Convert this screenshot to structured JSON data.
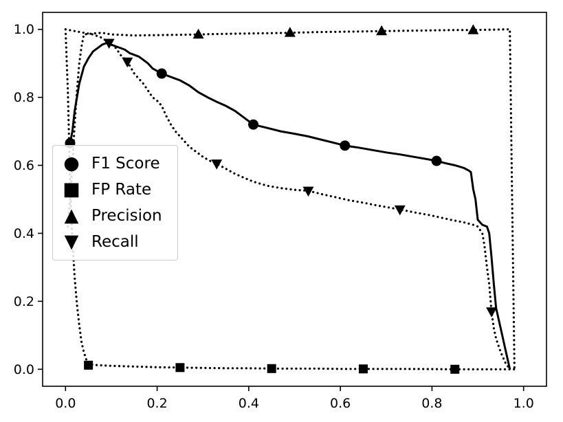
{
  "chart_data": {
    "type": "line",
    "title": "",
    "xlabel": "",
    "ylabel": "",
    "xlim": [
      -0.05,
      1.05
    ],
    "ylim": [
      -0.05,
      1.05
    ],
    "xticks": [
      "0.0",
      "0.2",
      "0.4",
      "0.6",
      "0.8",
      "1.0"
    ],
    "yticks": [
      "0.0",
      "0.2",
      "0.4",
      "0.6",
      "0.8",
      "1.0"
    ],
    "grid": false,
    "legend_position": "center left",
    "series": [
      {
        "name": "F1 Score",
        "line_style": "solid",
        "marker": "circle",
        "color": "#000000",
        "x": [
          0.005,
          0.01,
          0.015,
          0.02,
          0.03,
          0.04,
          0.05,
          0.06,
          0.07,
          0.08,
          0.09,
          0.1,
          0.11,
          0.12,
          0.13,
          0.14,
          0.15,
          0.16,
          0.17,
          0.18,
          0.19,
          0.21,
          0.23,
          0.25,
          0.27,
          0.29,
          0.31,
          0.33,
          0.35,
          0.37,
          0.39,
          0.41,
          0.44,
          0.47,
          0.5,
          0.53,
          0.56,
          0.59,
          0.61,
          0.64,
          0.67,
          0.7,
          0.73,
          0.76,
          0.79,
          0.81,
          0.83,
          0.85,
          0.87,
          0.88,
          0.885,
          0.89,
          0.895,
          0.9,
          0.91,
          0.92,
          0.925,
          0.93,
          0.935,
          0.94,
          0.95,
          0.96,
          0.965,
          0.97
        ],
        "y": [
          0.655,
          0.665,
          0.7,
          0.76,
          0.84,
          0.89,
          0.915,
          0.935,
          0.945,
          0.955,
          0.96,
          0.955,
          0.95,
          0.945,
          0.94,
          0.93,
          0.925,
          0.92,
          0.91,
          0.9,
          0.885,
          0.87,
          0.86,
          0.85,
          0.835,
          0.815,
          0.8,
          0.787,
          0.775,
          0.76,
          0.74,
          0.72,
          0.71,
          0.7,
          0.693,
          0.685,
          0.675,
          0.665,
          0.658,
          0.652,
          0.645,
          0.638,
          0.632,
          0.625,
          0.618,
          0.613,
          0.606,
          0.6,
          0.592,
          0.585,
          0.58,
          0.53,
          0.5,
          0.44,
          0.425,
          0.42,
          0.4,
          0.33,
          0.25,
          0.18,
          0.12,
          0.06,
          0.03,
          0.0
        ],
        "marker_points": {
          "x": [
            0.01,
            0.21,
            0.41,
            0.61,
            0.81
          ],
          "y": [
            0.665,
            0.87,
            0.72,
            0.658,
            0.613
          ]
        }
      },
      {
        "name": "FP Rate",
        "line_style": "dotted",
        "marker": "square",
        "color": "#000000",
        "x": [
          0.0,
          0.005,
          0.01,
          0.015,
          0.02,
          0.025,
          0.03,
          0.035,
          0.04,
          0.045,
          0.05,
          0.07,
          0.1,
          0.15,
          0.2,
          0.25,
          0.3,
          0.35,
          0.4,
          0.45,
          0.5,
          0.55,
          0.6,
          0.65,
          0.7,
          0.75,
          0.8,
          0.85,
          0.9,
          0.95,
          0.98
        ],
        "y": [
          1.0,
          0.82,
          0.55,
          0.38,
          0.27,
          0.19,
          0.13,
          0.08,
          0.05,
          0.03,
          0.015,
          0.012,
          0.01,
          0.008,
          0.006,
          0.005,
          0.004,
          0.003,
          0.003,
          0.002,
          0.002,
          0.002,
          0.001,
          0.001,
          0.001,
          0.001,
          0.0005,
          0.0,
          0.0,
          0.0,
          0.0
        ],
        "marker_points": {
          "x": [
            0.05,
            0.25,
            0.45,
            0.65,
            0.85
          ],
          "y": [
            0.012,
            0.005,
            0.002,
            0.001,
            0.0
          ]
        }
      },
      {
        "name": "Precision",
        "line_style": "dotted",
        "marker": "triangle-up",
        "color": "#000000",
        "x": [
          0.005,
          0.01,
          0.015,
          0.02,
          0.025,
          0.03,
          0.035,
          0.04,
          0.06,
          0.08,
          0.1,
          0.15,
          0.2,
          0.25,
          0.29,
          0.35,
          0.4,
          0.45,
          0.49,
          0.55,
          0.6,
          0.65,
          0.69,
          0.75,
          0.8,
          0.85,
          0.89,
          0.93,
          0.96,
          0.97,
          0.975,
          0.98
        ],
        "y": [
          0.42,
          0.5,
          0.6,
          0.72,
          0.82,
          0.9,
          0.95,
          0.985,
          0.988,
          0.99,
          0.985,
          0.982,
          0.983,
          0.984,
          0.985,
          0.987,
          0.988,
          0.989,
          0.99,
          0.992,
          0.993,
          0.994,
          0.995,
          0.996,
          0.997,
          0.998,
          0.998,
          0.999,
          1.0,
          1.0,
          0.5,
          0.0
        ],
        "marker_points": {
          "x": [
            0.29,
            0.49,
            0.69,
            0.89
          ],
          "y": [
            0.985,
            0.99,
            0.995,
            0.998
          ]
        }
      },
      {
        "name": "Recall",
        "line_style": "dotted",
        "marker": "triangle-down",
        "color": "#000000",
        "x": [
          0.0,
          0.02,
          0.04,
          0.06,
          0.08,
          0.095,
          0.11,
          0.12,
          0.135,
          0.15,
          0.16,
          0.17,
          0.18,
          0.19,
          0.2,
          0.21,
          0.22,
          0.23,
          0.24,
          0.25,
          0.26,
          0.27,
          0.28,
          0.29,
          0.3,
          0.31,
          0.32,
          0.33,
          0.35,
          0.37,
          0.39,
          0.41,
          0.44,
          0.47,
          0.5,
          0.53,
          0.56,
          0.59,
          0.62,
          0.65,
          0.68,
          0.71,
          0.73,
          0.76,
          0.8,
          0.84,
          0.87,
          0.89,
          0.9,
          0.91,
          0.915,
          0.92,
          0.925,
          0.93,
          0.935,
          0.94,
          0.95,
          0.96,
          0.97
        ],
        "y": [
          1.0,
          0.995,
          0.99,
          0.985,
          0.975,
          0.96,
          0.945,
          0.925,
          0.905,
          0.87,
          0.855,
          0.84,
          0.82,
          0.8,
          0.79,
          0.775,
          0.745,
          0.72,
          0.7,
          0.685,
          0.67,
          0.655,
          0.645,
          0.635,
          0.625,
          0.617,
          0.61,
          0.605,
          0.59,
          0.575,
          0.563,
          0.552,
          0.54,
          0.533,
          0.528,
          0.525,
          0.515,
          0.506,
          0.497,
          0.49,
          0.482,
          0.475,
          0.47,
          0.462,
          0.452,
          0.44,
          0.432,
          0.425,
          0.42,
          0.4,
          0.36,
          0.3,
          0.25,
          0.17,
          0.12,
          0.09,
          0.05,
          0.02,
          0.0
        ],
        "marker_points": {
          "x": [
            0.095,
            0.135,
            0.33,
            0.53,
            0.73,
            0.93
          ],
          "y": [
            0.96,
            0.905,
            0.605,
            0.525,
            0.47,
            0.17
          ]
        }
      }
    ]
  },
  "legend": {
    "entries": [
      {
        "label": "F1 Score",
        "marker_icon": "circle-marker-icon",
        "glyph": "●"
      },
      {
        "label": "FP Rate",
        "marker_icon": "square-marker-icon",
        "glyph": "■"
      },
      {
        "label": "Precision",
        "marker_icon": "triangle-up-marker-icon",
        "glyph": "▲"
      },
      {
        "label": "Recall",
        "marker_icon": "triangle-down-marker-icon",
        "glyph": "▼"
      }
    ]
  },
  "colors": {
    "line": "#000000",
    "axis": "#000000",
    "legend_border": "#cccccc",
    "background": "#ffffff"
  }
}
